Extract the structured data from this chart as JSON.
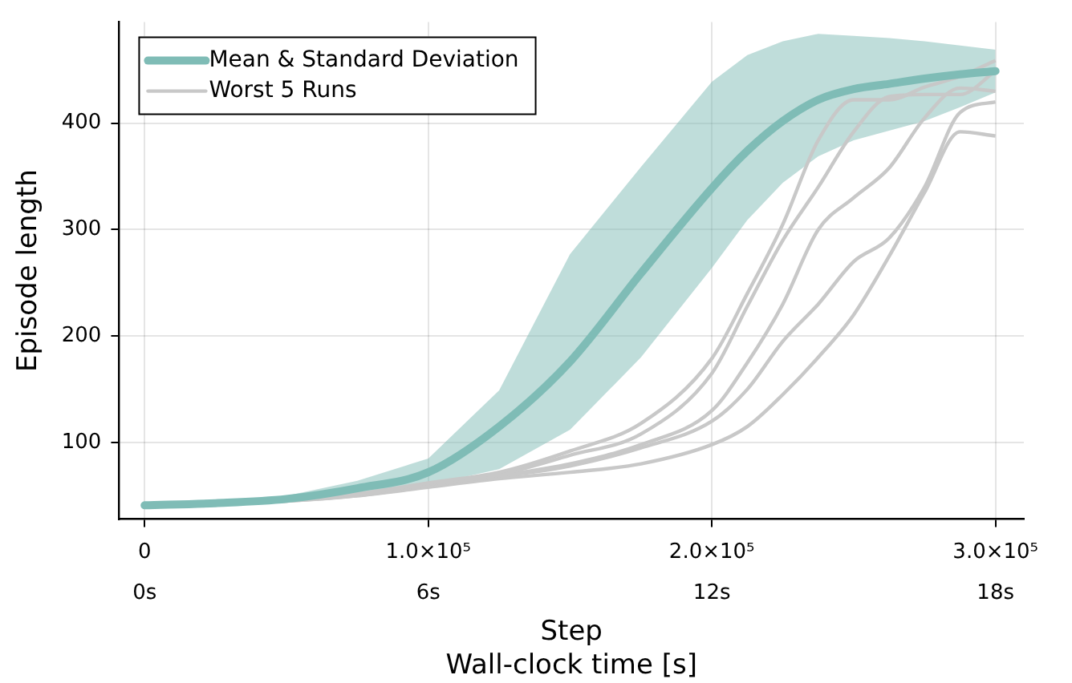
{
  "chart_data": {
    "type": "line",
    "xlabel": "Step",
    "x2label": "Wall-clock time [s]",
    "ylabel": "Episode length",
    "x": [
      0,
      25000,
      50000,
      75000,
      100000,
      125000,
      150000,
      175000,
      200000,
      212500,
      225000,
      237500,
      250000,
      262500,
      275000,
      287500,
      300000
    ],
    "xlim": [
      -9000,
      310000
    ],
    "xticks": [
      {
        "value": 0,
        "label": "0"
      },
      {
        "value": 100000,
        "label": "1.0×10⁵"
      },
      {
        "value": 200000,
        "label": "2.0×10⁵"
      },
      {
        "value": 300000,
        "label": "3.0×10⁵"
      }
    ],
    "x2lim": [
      -0.54,
      18.6
    ],
    "x2ticks": [
      {
        "value": 0,
        "label": "0s"
      },
      {
        "value": 6,
        "label": "6s"
      },
      {
        "value": 12,
        "label": "12s"
      },
      {
        "value": 18,
        "label": "18s"
      }
    ],
    "ylim": [
      28,
      495
    ],
    "yticks": [
      100,
      200,
      300,
      400
    ],
    "grid": true,
    "legend": "top left",
    "marker": "none",
    "line_style": "solid",
    "series": [
      {
        "name": "Mean & Standard Deviation",
        "color": "#7fbcb6",
        "values": [
          41,
          43,
          47,
          57,
          72,
          115,
          176,
          259,
          339,
          374,
          402,
          422,
          432,
          437,
          442,
          446,
          449
        ],
        "lower": [
          40,
          42,
          45,
          53,
          60,
          75,
          112,
          180,
          264,
          309,
          344,
          369,
          384,
          393,
          402,
          415,
          429
        ],
        "upper": [
          43,
          45,
          50,
          64,
          85,
          149,
          277,
          359,
          439,
          464,
          477,
          484,
          482,
          480,
          477,
          473,
          469
        ]
      },
      {
        "name": "Worst 5 Runs",
        "color": "#c8c8c8",
        "values": [
          41,
          43,
          46,
          52,
          62,
          72,
          92,
          118,
          179,
          240,
          305,
          384,
          422,
          422,
          434,
          444,
          459
        ]
      },
      {
        "color": "#c8c8c8",
        "values": [
          41,
          43,
          46,
          51,
          61,
          70,
          88,
          108,
          165,
          228,
          290,
          340,
          392,
          425,
          427,
          427,
          449
        ]
      },
      {
        "color": "#c8c8c8",
        "values": [
          41,
          43,
          46,
          51,
          60,
          69,
          80,
          98,
          130,
          175,
          230,
          300,
          330,
          358,
          405,
          433,
          430
        ]
      },
      {
        "color": "#c8c8c8",
        "values": [
          41,
          43,
          45,
          50,
          59,
          68,
          78,
          95,
          120,
          150,
          195,
          230,
          270,
          292,
          340,
          410,
          420
        ]
      },
      {
        "color": "#c8c8c8",
        "values": [
          41,
          43,
          45,
          50,
          58,
          66,
          72,
          80,
          98,
          115,
          145,
          180,
          220,
          275,
          335,
          392,
          388
        ]
      }
    ]
  }
}
